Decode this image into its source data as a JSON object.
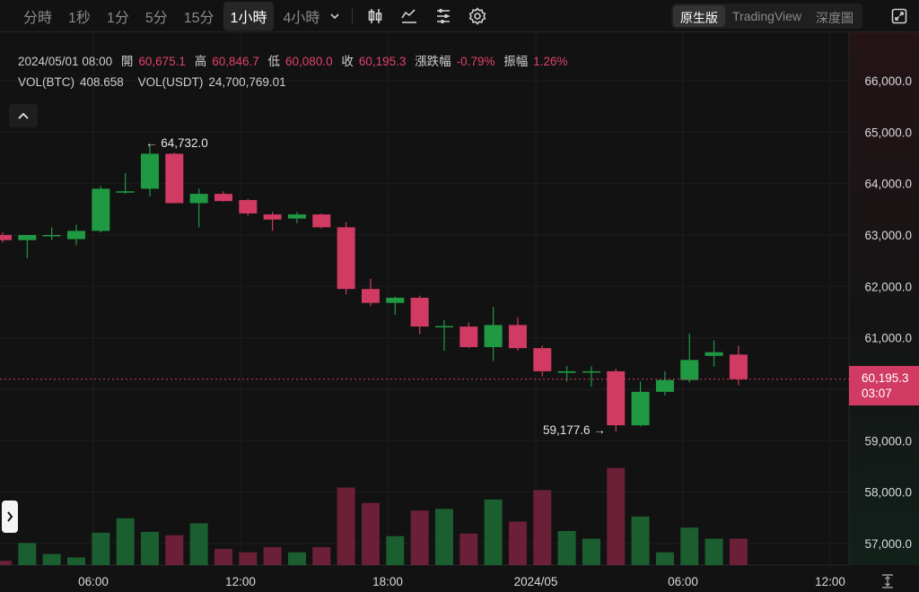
{
  "toolbar": {
    "timeframes": [
      "分時",
      "1秒",
      "1分",
      "5分",
      "15分",
      "1小時",
      "4小時"
    ],
    "active_timeframe": "1小時",
    "icons": [
      "chevron-down-icon",
      "candlestick-type-icon",
      "indicators-icon",
      "drawing-tools-icon",
      "settings-icon"
    ],
    "views": [
      "原生版",
      "TradingView",
      "深度圖"
    ],
    "active_view": "原生版"
  },
  "legend": {
    "datetime": "2024/05/01 08:00",
    "open_label": "開",
    "open": "60,675.1",
    "high_label": "高",
    "high": "60,846.7",
    "low_label": "低",
    "low": "60,080.0",
    "close_label": "收",
    "close": "60,195.3",
    "change_label": "漲跌幅",
    "change": "-0.79%",
    "amplitude_label": "振幅",
    "amplitude": "1.26%",
    "vol_btc_label": "VOL(BTC)",
    "vol_btc": "408.658",
    "vol_usdt_label": "VOL(USDT)",
    "vol_usdt": "24,700,769.01"
  },
  "current_price": {
    "price": "60,195.3",
    "countdown": "03:07"
  },
  "annotations": {
    "high_marker": "← 64,732.0",
    "low_marker": "59,177.6 →"
  },
  "colors": {
    "up": "#1f9a43",
    "down": "#d13a63",
    "background": "#121212",
    "grid": "#1e1e1e"
  },
  "chart_data": {
    "type": "candlestick",
    "interval": "1h",
    "x_tick_labels": [
      "06:00",
      "12:00",
      "18:00",
      "2024/05",
      "06:00",
      "12:00"
    ],
    "y_tick_labels": [
      "57,000.0",
      "58,000.0",
      "59,000.0",
      "60,000.0",
      "61,000.0",
      "62,000.0",
      "63,000.0",
      "64,000.0",
      "65,000.0",
      "66,000.0"
    ],
    "ylim": [
      56600,
      66500
    ],
    "last_price": 60195.3,
    "candles": [
      {
        "o": 63000,
        "h": 63050,
        "l": 62850,
        "c": 62900
      },
      {
        "o": 62900,
        "h": 63000,
        "l": 62550,
        "c": 63000
      },
      {
        "o": 63000,
        "h": 63150,
        "l": 62900,
        "c": 63000
      },
      {
        "o": 62920,
        "h": 63200,
        "l": 62800,
        "c": 63080
      },
      {
        "o": 63080,
        "h": 63950,
        "l": 63050,
        "c": 63900
      },
      {
        "o": 63850,
        "h": 64200,
        "l": 63800,
        "c": 63850
      },
      {
        "o": 63900,
        "h": 64732,
        "l": 63750,
        "c": 64580
      },
      {
        "o": 64580,
        "h": 64600,
        "l": 63620,
        "c": 63620
      },
      {
        "o": 63620,
        "h": 63900,
        "l": 63150,
        "c": 63800
      },
      {
        "o": 63800,
        "h": 63850,
        "l": 63650,
        "c": 63660
      },
      {
        "o": 63680,
        "h": 63700,
        "l": 63380,
        "c": 63420
      },
      {
        "o": 63400,
        "h": 63450,
        "l": 63080,
        "c": 63300
      },
      {
        "o": 63320,
        "h": 63450,
        "l": 63230,
        "c": 63400
      },
      {
        "o": 63400,
        "h": 63420,
        "l": 63130,
        "c": 63150
      },
      {
        "o": 63150,
        "h": 63250,
        "l": 61850,
        "c": 61950
      },
      {
        "o": 61950,
        "h": 62150,
        "l": 61620,
        "c": 61680
      },
      {
        "o": 61680,
        "h": 61800,
        "l": 61450,
        "c": 61780
      },
      {
        "o": 61780,
        "h": 61820,
        "l": 61070,
        "c": 61220
      },
      {
        "o": 61230,
        "h": 61350,
        "l": 60750,
        "c": 61230
      },
      {
        "o": 61220,
        "h": 61300,
        "l": 60800,
        "c": 60820
      },
      {
        "o": 60820,
        "h": 61600,
        "l": 60550,
        "c": 61250
      },
      {
        "o": 61250,
        "h": 61400,
        "l": 60750,
        "c": 60800
      },
      {
        "o": 60800,
        "h": 60850,
        "l": 60250,
        "c": 60350
      },
      {
        "o": 60320,
        "h": 60450,
        "l": 60150,
        "c": 60350
      },
      {
        "o": 60350,
        "h": 60450,
        "l": 60050,
        "c": 60350
      },
      {
        "o": 60350,
        "h": 60400,
        "l": 59177.6,
        "c": 59300
      },
      {
        "o": 59300,
        "h": 60150,
        "l": 59280,
        "c": 59950
      },
      {
        "o": 59950,
        "h": 60350,
        "l": 59880,
        "c": 60180
      },
      {
        "o": 60180,
        "h": 61080,
        "l": 60130,
        "c": 60570
      },
      {
        "o": 60650,
        "h": 60950,
        "l": 60440,
        "c": 60720
      },
      {
        "o": 60675.1,
        "h": 60846.7,
        "l": 60080,
        "c": 60195.3
      }
    ],
    "volumes": [
      0.25,
      1.3,
      0.65,
      0.45,
      1.9,
      2.75,
      1.95,
      1.75,
      2.45,
      0.95,
      0.75,
      1.05,
      0.75,
      1.05,
      4.55,
      3.65,
      1.7,
      3.2,
      3.3,
      1.85,
      3.85,
      2.55,
      4.4,
      2.0,
      1.55,
      5.7,
      2.85,
      0.75,
      2.2,
      1.55,
      1.55
    ]
  }
}
